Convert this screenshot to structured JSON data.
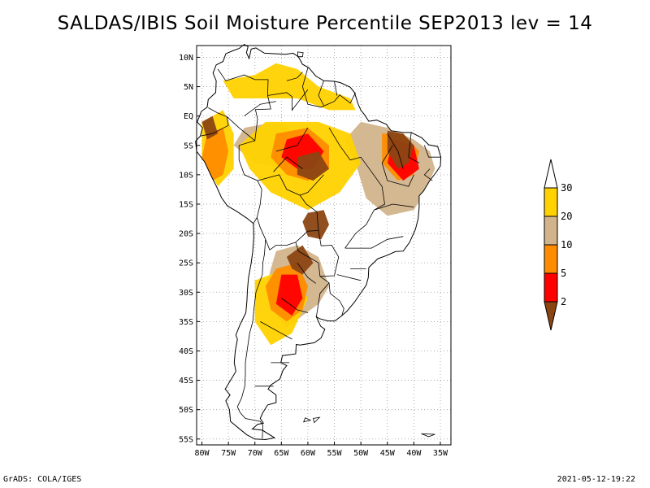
{
  "title": "SALDAS/IBIS Soil Moisture Percentile SEP2013 lev = 14",
  "footer": {
    "left": "GrADS: COLA/IGES",
    "right": "2021-05-12-19:22"
  },
  "axes": {
    "lon_ticks": [
      "80W",
      "75W",
      "70W",
      "65W",
      "60W",
      "55W",
      "50W",
      "45W",
      "40W",
      "35W"
    ],
    "lat_ticks": [
      "10N",
      "5N",
      "EQ",
      "5S",
      "10S",
      "15S",
      "20S",
      "25S",
      "30S",
      "35S",
      "40S",
      "45S",
      "50S",
      "55S"
    ],
    "lon_range": [
      -81,
      -33
    ],
    "lat_range": [
      12,
      -56
    ],
    "grid": "dotted"
  },
  "legend": {
    "labels": [
      "30",
      "20",
      "10",
      "5",
      "2"
    ],
    "colors": [
      "#ffffff",
      "#ffd200",
      "#d2b48c",
      "#ff8c00",
      "#ff0000",
      "#8b4513"
    ]
  },
  "colors": {
    "p2": "#8b4513",
    "p5": "#ff0000",
    "p10": "#ff8c00",
    "p20": "#d2b48c",
    "p30": "#ffd200"
  }
}
